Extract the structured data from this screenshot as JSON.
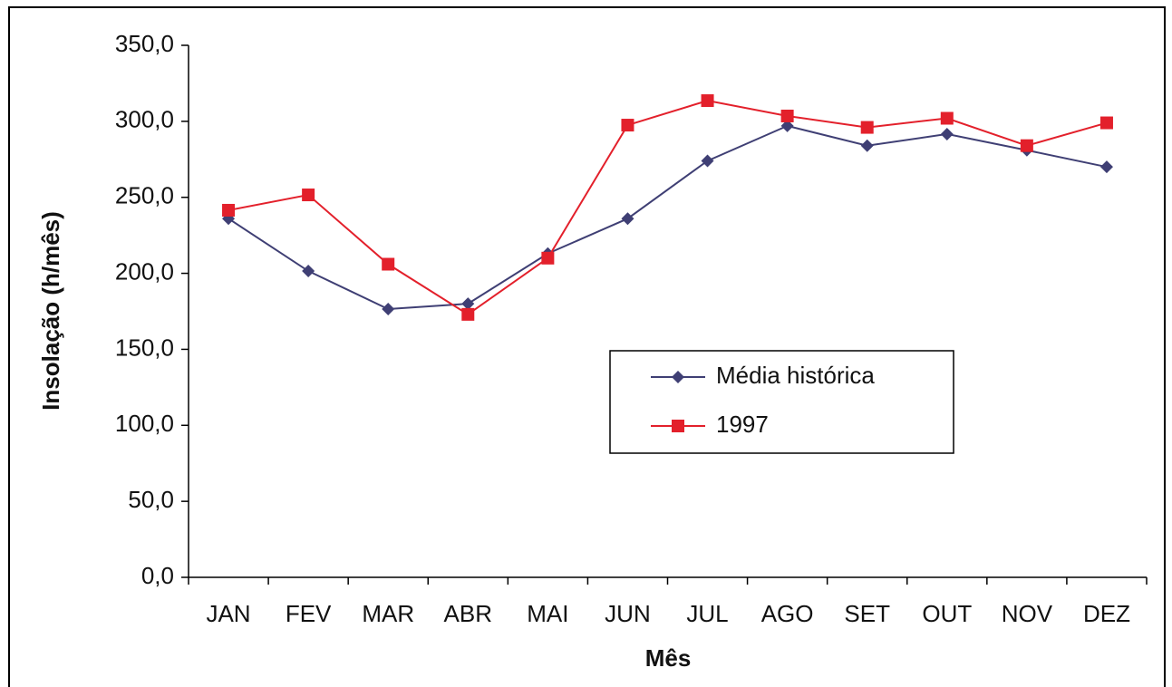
{
  "chart_data": {
    "type": "line",
    "x_label": "Mês",
    "y_label": "Insolação (h/mês)",
    "categories": [
      "JAN",
      "FEV",
      "MAR",
      "ABR",
      "MAI",
      "JUN",
      "JUL",
      "AGO",
      "SET",
      "OUT",
      "NOV",
      "DEZ"
    ],
    "series": [
      {
        "name": "Média histórica",
        "color": "#3f3f74",
        "marker": "diamond",
        "values": [
          236,
          201.5,
          176.5,
          180,
          213,
          236,
          274,
          297,
          284,
          291.6,
          281,
          270
        ]
      },
      {
        "name": "1997",
        "color": "#e3202b",
        "marker": "square",
        "values": [
          241.5,
          251.6,
          206,
          173,
          210,
          297.5,
          313.6,
          303.5,
          296,
          302,
          284,
          299
        ]
      }
    ],
    "ylim": [
      0,
      350
    ],
    "yticks": [
      {
        "value": 0,
        "label": "0,0"
      },
      {
        "value": 50,
        "label": "50,0"
      },
      {
        "value": 100,
        "label": "100,0"
      },
      {
        "value": 150,
        "label": "150,0"
      },
      {
        "value": 200,
        "label": "200,0"
      },
      {
        "value": 250,
        "label": "250,0"
      },
      {
        "value": 300,
        "label": "300,0"
      },
      {
        "value": 350,
        "label": "350,0"
      }
    ],
    "grid": false
  }
}
